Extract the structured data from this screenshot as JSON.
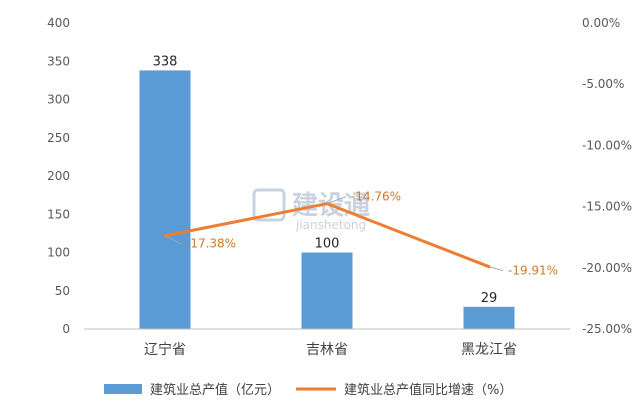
{
  "chart_data": {
    "type": "bar+line",
    "categories": [
      "辽宁省",
      "吉林省",
      "黑龙江省"
    ],
    "series": [
      {
        "name": "建筑业总产值（亿元）",
        "type": "bar",
        "axis": "left",
        "values": [
          338,
          100,
          29
        ],
        "labels": [
          "338",
          "100",
          "29"
        ],
        "color": "#5b9bd5"
      },
      {
        "name": "建筑业总产值同比增速（%）",
        "type": "line",
        "axis": "right",
        "values": [
          -17.38,
          -14.76,
          -19.91
        ],
        "labels": [
          "-17.38%",
          "-14.76%",
          "-19.91%"
        ],
        "color": "#ed7d31"
      }
    ],
    "y_left": {
      "min": 0,
      "max": 400,
      "step": 50,
      "ticks": [
        "0",
        "50",
        "100",
        "150",
        "200",
        "250",
        "300",
        "350",
        "400"
      ]
    },
    "y_right": {
      "min": -25,
      "max": 0,
      "step": 5,
      "ticks": [
        "-25.00%",
        "-20.00%",
        "-15.00%",
        "-10.00%",
        "-5.00%",
        "0.00%"
      ]
    },
    "legend_position": "bottom",
    "grid": false
  },
  "watermark": {
    "text": "建设通",
    "sub": "jianshetong"
  }
}
